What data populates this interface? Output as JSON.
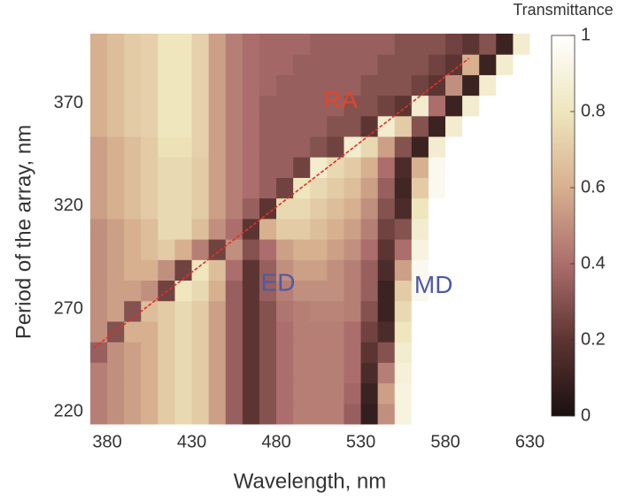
{
  "chart_data": {
    "type": "heatmap",
    "xlabel": "Wavelength, nm",
    "ylabel": "Period of the array, nm",
    "colorbar_label": "Transmittance",
    "xlim": [
      370,
      640
    ],
    "ylim": [
      214,
      404
    ],
    "xticks": [
      380,
      430,
      480,
      530,
      580,
      630
    ],
    "yticks": [
      220,
      270,
      320,
      370
    ],
    "clim": [
      0,
      1
    ],
    "cticks": [
      0,
      0.2,
      0.4,
      0.6,
      0.8,
      1
    ],
    "colormap": [
      "#1a1010",
      "#5c3532",
      "#ab6e6c",
      "#d7b08f",
      "#efe6bd",
      "#ffffff"
    ],
    "x": [
      375,
      385,
      395,
      405,
      415,
      425,
      435,
      445,
      455,
      465,
      475,
      485,
      495,
      505,
      515,
      525,
      535,
      545,
      555,
      565,
      575,
      585,
      595,
      605,
      615,
      625,
      635
    ],
    "y": [
      219,
      229,
      239,
      249,
      259,
      269,
      279,
      289,
      299,
      309,
      319,
      329,
      339,
      349,
      359,
      369,
      379,
      389,
      399
    ],
    "z": [
      [
        0.45,
        0.5,
        0.55,
        0.6,
        0.7,
        0.75,
        0.7,
        0.55,
        0.35,
        0.2,
        0.3,
        0.4,
        0.45,
        0.45,
        0.45,
        0.35,
        0.08,
        0.5,
        0.9,
        1,
        1,
        1,
        1,
        1,
        1,
        1,
        1
      ],
      [
        0.45,
        0.5,
        0.55,
        0.6,
        0.7,
        0.75,
        0.7,
        0.55,
        0.35,
        0.2,
        0.3,
        0.4,
        0.45,
        0.45,
        0.45,
        0.38,
        0.1,
        0.55,
        0.9,
        1,
        1,
        1,
        1,
        1,
        1,
        1,
        1
      ],
      [
        0.45,
        0.5,
        0.55,
        0.6,
        0.7,
        0.75,
        0.7,
        0.55,
        0.35,
        0.2,
        0.3,
        0.4,
        0.45,
        0.45,
        0.45,
        0.4,
        0.15,
        0.45,
        0.88,
        1,
        1,
        1,
        1,
        1,
        1,
        1,
        1
      ],
      [
        0.35,
        0.5,
        0.55,
        0.6,
        0.7,
        0.75,
        0.7,
        0.55,
        0.35,
        0.2,
        0.3,
        0.4,
        0.45,
        0.45,
        0.45,
        0.4,
        0.2,
        0.3,
        0.85,
        1,
        1,
        1,
        1,
        1,
        1,
        1,
        1
      ],
      [
        0.5,
        0.3,
        0.6,
        0.6,
        0.7,
        0.75,
        0.7,
        0.55,
        0.35,
        0.2,
        0.3,
        0.4,
        0.45,
        0.45,
        0.45,
        0.4,
        0.25,
        0.15,
        0.8,
        1,
        1,
        1,
        1,
        1,
        1,
        1,
        1
      ],
      [
        0.5,
        0.55,
        0.3,
        0.65,
        0.7,
        0.75,
        0.7,
        0.55,
        0.35,
        0.2,
        0.3,
        0.42,
        0.45,
        0.47,
        0.47,
        0.45,
        0.3,
        0.1,
        0.75,
        1,
        1,
        1,
        1,
        1,
        1,
        1,
        1
      ],
      [
        0.5,
        0.55,
        0.55,
        0.5,
        0.25,
        0.8,
        0.75,
        0.6,
        0.35,
        0.2,
        0.35,
        0.45,
        0.5,
        0.5,
        0.5,
        0.45,
        0.35,
        0.1,
        0.7,
        0.95,
        1,
        1,
        1,
        1,
        1,
        1,
        1
      ],
      [
        0.5,
        0.55,
        0.6,
        0.6,
        0.5,
        0.25,
        0.8,
        0.65,
        0.4,
        0.2,
        0.35,
        0.5,
        0.55,
        0.55,
        0.5,
        0.45,
        0.35,
        0.15,
        0.55,
        0.95,
        1,
        1,
        1,
        1,
        1,
        1,
        1
      ],
      [
        0.5,
        0.55,
        0.6,
        0.65,
        0.7,
        0.6,
        0.45,
        0.25,
        0.5,
        0.3,
        0.4,
        0.55,
        0.6,
        0.6,
        0.55,
        0.5,
        0.4,
        0.2,
        0.4,
        0.9,
        1,
        1,
        1,
        1,
        1,
        1,
        1
      ],
      [
        0.5,
        0.55,
        0.6,
        0.65,
        0.75,
        0.75,
        0.65,
        0.5,
        0.4,
        0.2,
        0.6,
        0.7,
        0.7,
        0.65,
        0.6,
        0.55,
        0.45,
        0.25,
        0.3,
        0.85,
        1,
        1,
        1,
        1,
        1,
        1,
        1
      ],
      [
        0.55,
        0.6,
        0.65,
        0.7,
        0.75,
        0.75,
        0.7,
        0.55,
        0.45,
        0.35,
        0.2,
        0.75,
        0.75,
        0.7,
        0.65,
        0.6,
        0.5,
        0.3,
        0.15,
        0.8,
        1,
        1,
        1,
        1,
        1,
        1,
        1
      ],
      [
        0.55,
        0.6,
        0.65,
        0.7,
        0.75,
        0.75,
        0.7,
        0.55,
        0.45,
        0.4,
        0.35,
        0.25,
        0.8,
        0.75,
        0.7,
        0.65,
        0.55,
        0.35,
        0.12,
        0.7,
        0.95,
        1,
        1,
        1,
        1,
        1,
        1
      ],
      [
        0.55,
        0.6,
        0.65,
        0.7,
        0.75,
        0.75,
        0.7,
        0.55,
        0.45,
        0.4,
        0.35,
        0.35,
        0.25,
        0.85,
        0.75,
        0.7,
        0.6,
        0.4,
        0.15,
        0.6,
        0.95,
        1,
        1,
        1,
        1,
        1,
        1
      ],
      [
        0.55,
        0.6,
        0.65,
        0.7,
        0.78,
        0.78,
        0.72,
        0.55,
        0.45,
        0.4,
        0.35,
        0.35,
        0.35,
        0.3,
        0.25,
        0.85,
        0.75,
        0.55,
        0.3,
        0.1,
        0.85,
        1,
        1,
        1,
        1,
        1,
        1
      ],
      [
        0.6,
        0.65,
        0.7,
        0.72,
        0.8,
        0.8,
        0.72,
        0.55,
        0.45,
        0.4,
        0.35,
        0.35,
        0.35,
        0.35,
        0.3,
        0.3,
        0.2,
        0.85,
        0.7,
        0.3,
        0.1,
        0.85,
        1,
        1,
        1,
        1,
        1
      ],
      [
        0.6,
        0.65,
        0.7,
        0.72,
        0.8,
        0.8,
        0.72,
        0.55,
        0.45,
        0.4,
        0.35,
        0.35,
        0.35,
        0.35,
        0.35,
        0.3,
        0.3,
        0.25,
        0.2,
        0.85,
        0.4,
        0.1,
        0.85,
        1,
        1,
        1,
        1
      ],
      [
        0.6,
        0.65,
        0.7,
        0.72,
        0.8,
        0.8,
        0.72,
        0.55,
        0.45,
        0.4,
        0.38,
        0.35,
        0.35,
        0.35,
        0.35,
        0.35,
        0.3,
        0.3,
        0.3,
        0.25,
        0.2,
        0.5,
        0.1,
        0.85,
        1,
        1,
        1
      ],
      [
        0.6,
        0.65,
        0.7,
        0.72,
        0.8,
        0.8,
        0.72,
        0.55,
        0.45,
        0.4,
        0.38,
        0.38,
        0.35,
        0.35,
        0.35,
        0.35,
        0.35,
        0.3,
        0.3,
        0.3,
        0.25,
        0.2,
        0.6,
        0.1,
        0.85,
        1,
        1
      ],
      [
        0.6,
        0.65,
        0.7,
        0.72,
        0.8,
        0.8,
        0.72,
        0.55,
        0.45,
        0.4,
        0.38,
        0.38,
        0.38,
        0.35,
        0.35,
        0.35,
        0.35,
        0.35,
        0.3,
        0.3,
        0.3,
        0.25,
        0.2,
        0.3,
        0.1,
        0.85,
        1
      ]
    ],
    "lines": [
      {
        "x": [
          372,
          594
        ],
        "y": [
          251,
          392
        ],
        "color": "#e0302a"
      }
    ],
    "annotations": [
      {
        "text": "RA",
        "x": 518,
        "y": 371,
        "color": "#e2452f"
      },
      {
        "text": "ED",
        "x": 481,
        "y": 282,
        "color": "#4e5aa6"
      },
      {
        "text": "MD",
        "x": 573,
        "y": 281,
        "color": "#4e5aa6"
      }
    ]
  }
}
